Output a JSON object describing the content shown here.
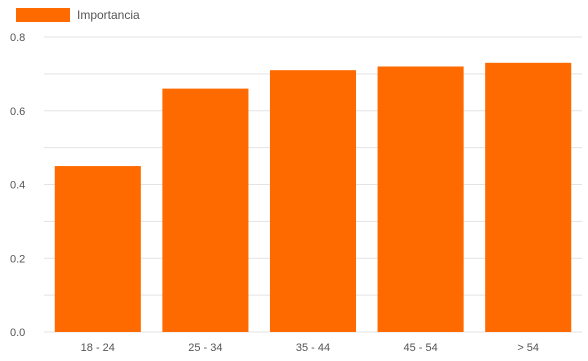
{
  "chart_data": {
    "type": "bar",
    "title": "",
    "xlabel": "",
    "ylabel": "",
    "categories": [
      "18 - 24",
      "25 - 34",
      "35 - 44",
      "45 - 54",
      "> 54"
    ],
    "series": [
      {
        "name": "Importancia",
        "values": [
          0.45,
          0.66,
          0.71,
          0.72,
          0.73
        ]
      }
    ],
    "ylim": [
      0,
      0.8
    ],
    "yticks": [
      0.0,
      0.2,
      0.4,
      0.6,
      0.8
    ],
    "ytick_labels": [
      "0.0",
      "0.2",
      "0.4",
      "0.6",
      "0.8"
    ],
    "grid": true,
    "legend_position": "top-left",
    "colors": {
      "bar": "#ff6a00",
      "grid": "#e3e3e3",
      "axis_text": "#555555"
    }
  }
}
